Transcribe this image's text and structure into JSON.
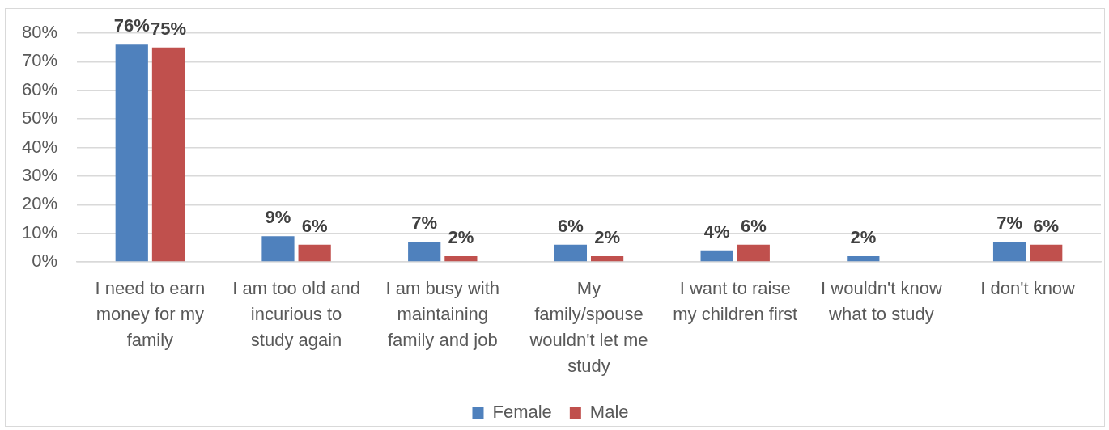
{
  "chart_data": {
    "type": "bar",
    "categories": [
      "I need to earn money for my family",
      "I am too old and incurious to study again",
      "I am busy with maintaining family and job",
      "My family/spouse wouldn't let me study",
      "I want to raise my children first",
      "I wouldn't know what to study",
      "I don't know"
    ],
    "series": [
      {
        "name": "Female",
        "color": "#4f81bd",
        "values": [
          76,
          9,
          7,
          6,
          4,
          2,
          7
        ],
        "value_labels": [
          "76%",
          "9%",
          "7%",
          "6%",
          "4%",
          "2%",
          "7%"
        ]
      },
      {
        "name": "Male",
        "color": "#c0504d",
        "values": [
          75,
          6,
          2,
          2,
          6,
          null,
          6
        ],
        "value_labels": [
          "75%",
          "6%",
          "2%",
          "2%",
          "6%",
          null,
          "6%"
        ]
      }
    ],
    "ylim": [
      0,
      80
    ],
    "yticks": [
      {
        "value": 0,
        "label": "0%"
      },
      {
        "value": 10,
        "label": "10%"
      },
      {
        "value": 20,
        "label": "20%"
      },
      {
        "value": 30,
        "label": "30%"
      },
      {
        "value": 40,
        "label": "40%"
      },
      {
        "value": 50,
        "label": "50%"
      },
      {
        "value": 60,
        "label": "60%"
      },
      {
        "value": 70,
        "label": "70%"
      },
      {
        "value": 80,
        "label": "80%"
      }
    ],
    "grid": "y",
    "legend": "bottom"
  }
}
